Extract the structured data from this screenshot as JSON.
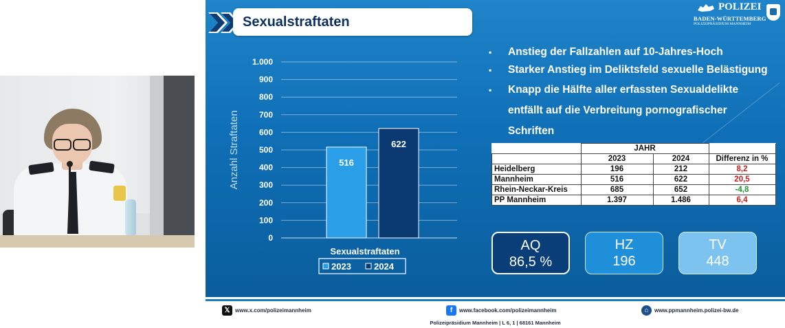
{
  "slide": {
    "title": "Sexualstraftaten",
    "logo": {
      "line1": "POLIZEI",
      "line2": "BADEN-WÜRTTEMBERG",
      "line3": "POLIZEIPRÄSIDIUM MANNHEIM"
    },
    "bullets": [
      "Anstieg der Fallzahlen auf 10-Jahres-Hoch",
      "Starker Anstieg im Deliktsfeld sexuelle Belästigung",
      "Knapp die Hälfte aller erfassten Sexualdelikte entfällt auf die Verbreitung pornografischer Schriften"
    ],
    "table": {
      "group_header": "JAHR",
      "col_2023": "2023",
      "col_2024": "2024",
      "col_diff": "Differenz in %",
      "rows": [
        {
          "name": "Heidelberg",
          "v2023": "196",
          "v2024": "212",
          "diff": "8,2",
          "trend": "up"
        },
        {
          "name": "Mannheim",
          "v2023": "516",
          "v2024": "622",
          "diff": "20,5",
          "trend": "up"
        },
        {
          "name": "Rhein-Neckar-Kreis",
          "v2023": "685",
          "v2024": "652",
          "diff": "-4,8",
          "trend": "down"
        },
        {
          "name": "PP Mannheim",
          "v2023": "1.397",
          "v2024": "1.486",
          "diff": "6,4",
          "trend": "up"
        }
      ]
    },
    "kpis": [
      {
        "label": "AQ",
        "value": "86,5 %"
      },
      {
        "label": "HZ",
        "value": "196"
      },
      {
        "label": "TV",
        "value": "448"
      }
    ],
    "footer": {
      "x_link": "www.x.com/polizeimannheim",
      "facebook_link": "www.facebook.com/polizeimannheim",
      "website_link": "www.ppmannheim.polizei-bw.de",
      "address": "Polizeipräsidium Mannheim | L 6, 1 | 68161 Mannheim"
    },
    "colors": {
      "bar_2023": "#2b9ee8",
      "bar_2024": "#0b3a73",
      "bg_top": "#1f84c9",
      "bg_bottom": "#0a5d9c"
    }
  },
  "chart_data": {
    "type": "bar",
    "categories": [
      "Sexualstraftaten"
    ],
    "series": [
      {
        "name": "2023",
        "values": [
          516
        ]
      },
      {
        "name": "2024",
        "values": [
          622
        ]
      }
    ],
    "data_labels": [
      "516",
      "622"
    ],
    "ylabel": "Anzahl Straftaten",
    "xlabel": "",
    "ylim": [
      0,
      1000
    ],
    "yticks": [
      0,
      100,
      200,
      300,
      400,
      500,
      600,
      700,
      800,
      900,
      1000
    ],
    "ytick_labels": [
      "0",
      "100",
      "200",
      "300",
      "400",
      "500",
      "600",
      "700",
      "800",
      "900",
      "1.000"
    ],
    "grid": true,
    "legend": "bottom"
  }
}
